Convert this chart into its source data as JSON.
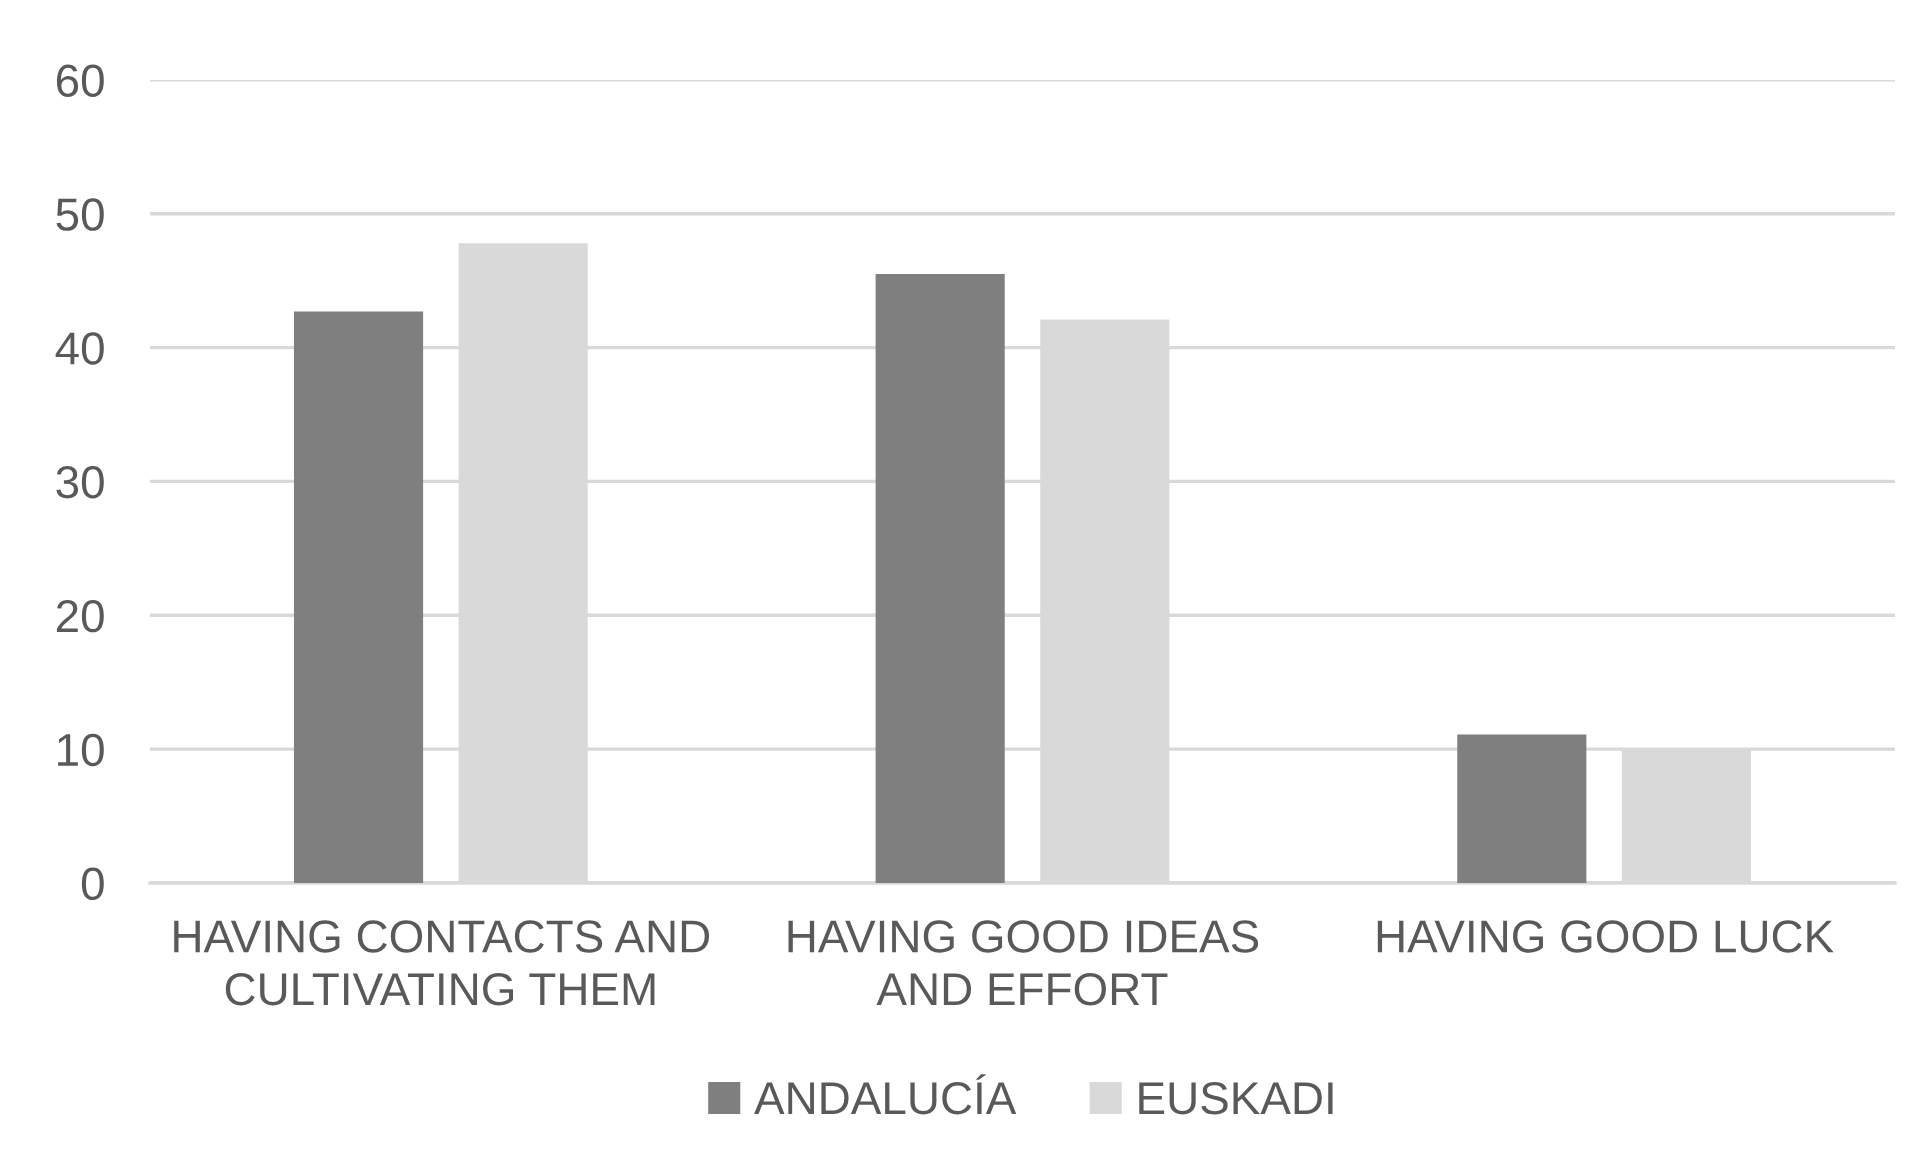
{
  "chart_data": {
    "type": "bar",
    "categories": [
      "HAVING CONTACTS AND\nCULTIVATING THEM",
      "HAVING GOOD IDEAS\nAND EFFORT",
      "HAVING GOOD LUCK"
    ],
    "series": [
      {
        "name": "ANDALUCÍA",
        "color": "#7f7f7f",
        "values": [
          42.7,
          45.5,
          11.1
        ]
      },
      {
        "name": "EUSKADI",
        "color": "#d9d9d9",
        "values": [
          47.8,
          42.1,
          10.0
        ]
      }
    ],
    "ylim": [
      0,
      60
    ],
    "yticks": [
      0,
      10,
      20,
      30,
      40,
      50,
      60
    ],
    "grid": "y",
    "legend": "bottom"
  }
}
